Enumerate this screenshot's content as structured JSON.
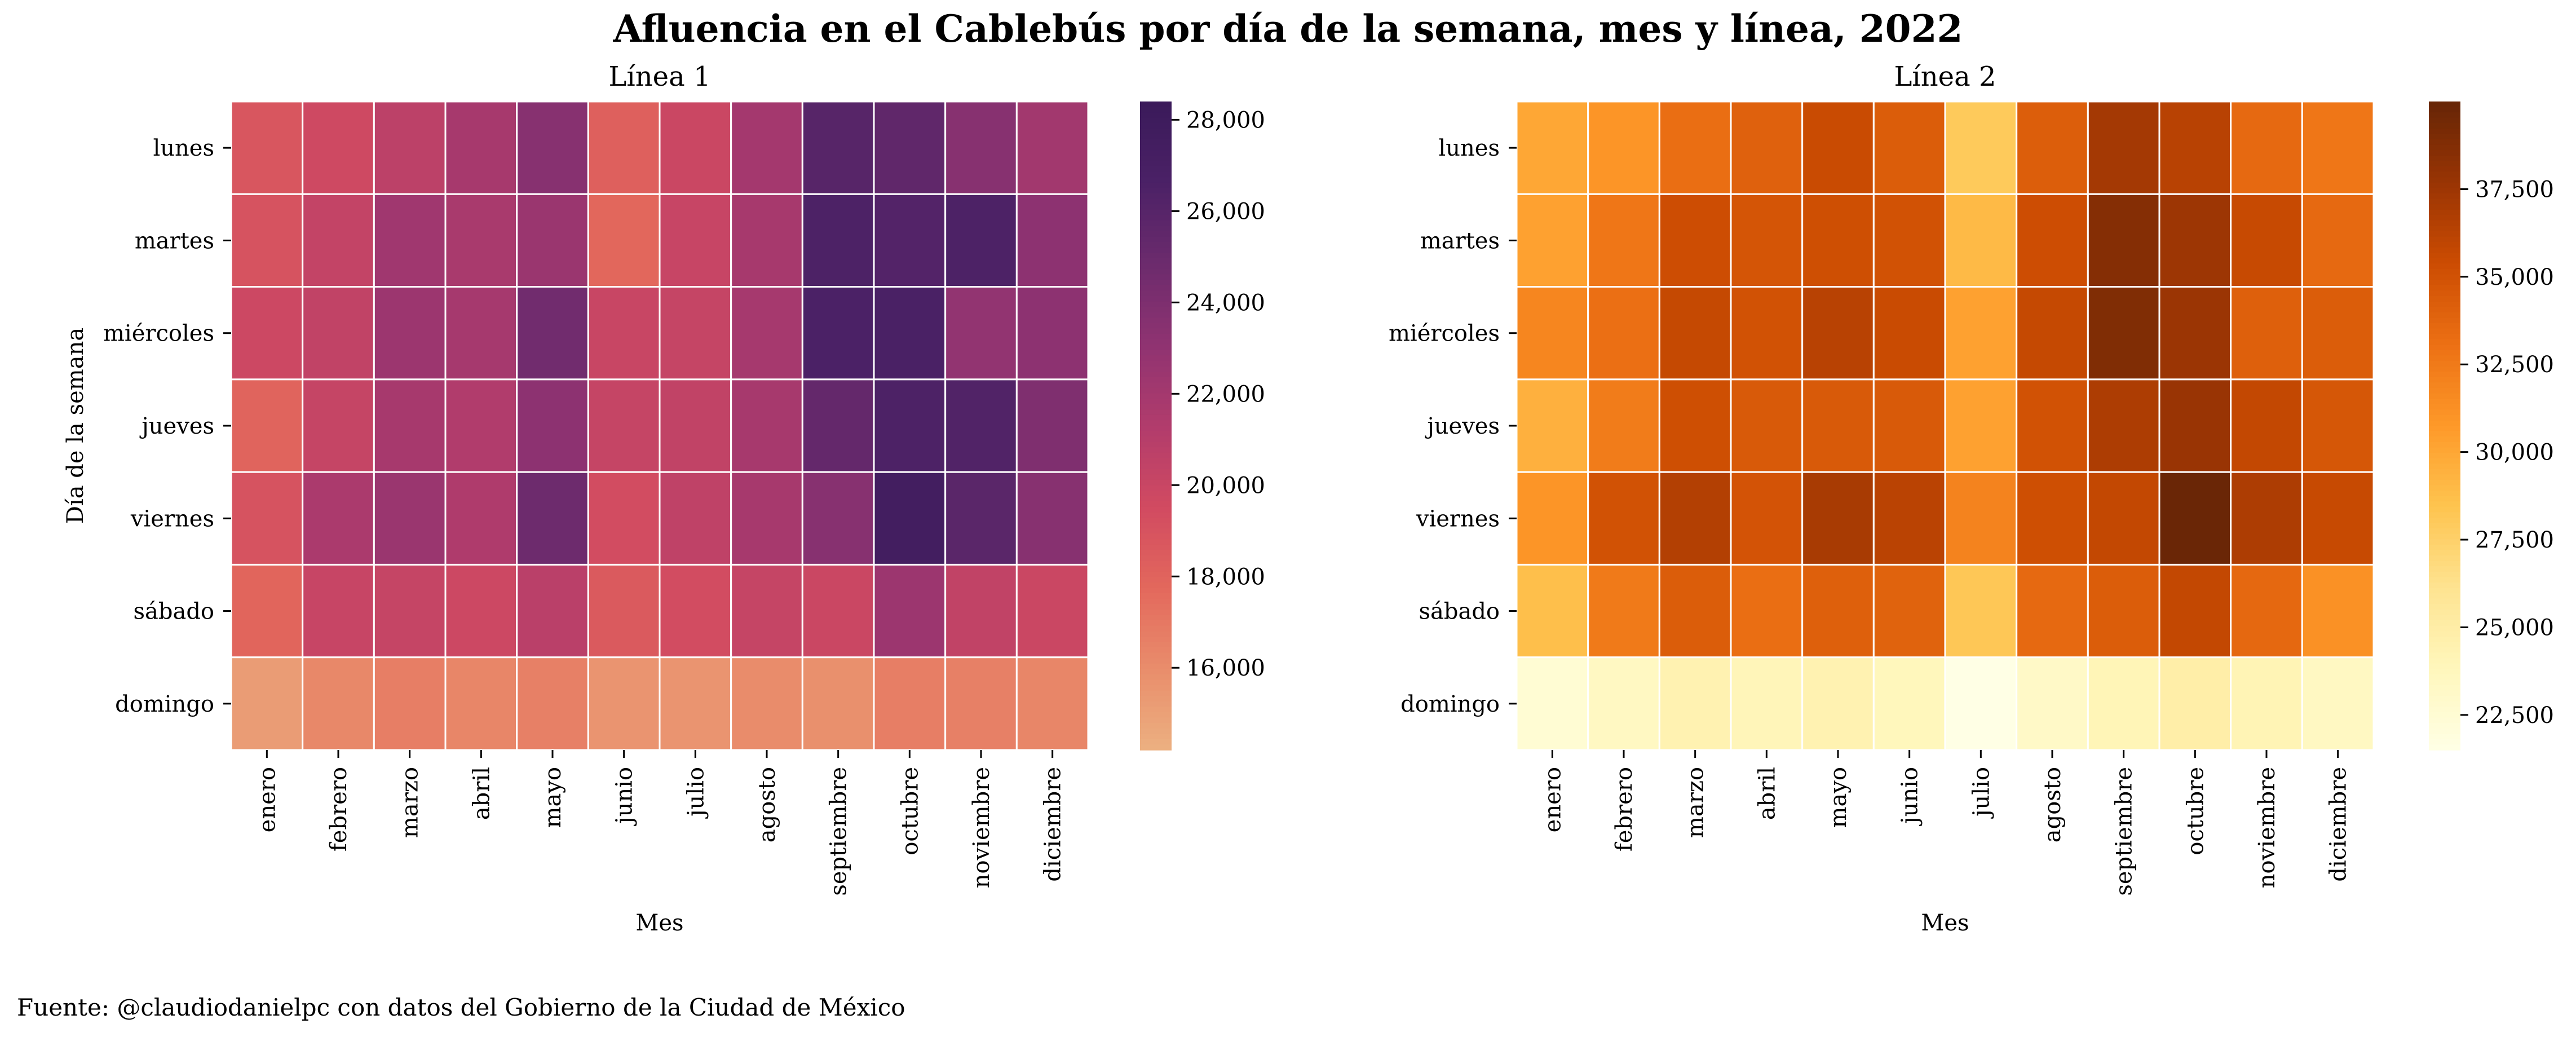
{
  "title": "Afluencia en el Cablebús por día de la semana, mes y línea, 2022",
  "source": "Fuente: @claudiodanielpc con datos del Gobierno de la Ciudad de México",
  "colors": {
    "cell_border": "#ffffff"
  },
  "chart_data": [
    {
      "type": "heatmap",
      "title": "Línea 1",
      "xlabel": "Mes",
      "ylabel": "Día de la semana",
      "colormap": "flare",
      "x_categories": [
        "enero",
        "febrero",
        "marzo",
        "abril",
        "mayo",
        "junio",
        "julio",
        "agosto",
        "septiembre",
        "octubre",
        "noviembre",
        "diciembre"
      ],
      "y_categories": [
        "lunes",
        "martes",
        "miércoles",
        "jueves",
        "viernes",
        "sábado",
        "domingo"
      ],
      "colorbar_range": [
        14200,
        28400
      ],
      "colorbar_ticks": [
        16000,
        18000,
        20000,
        22000,
        24000,
        26000,
        28000
      ],
      "colorbar_tick_labels": [
        "16,000",
        "18,000",
        "20,000",
        "22,000",
        "24,000",
        "26,000",
        "28,000"
      ],
      "values": [
        [
          18800,
          19700,
          20700,
          21800,
          23500,
          18200,
          19900,
          22000,
          26000,
          25500,
          23500,
          22100
        ],
        [
          19000,
          20300,
          22200,
          21700,
          22500,
          17800,
          20100,
          21800,
          26500,
          26200,
          26500,
          23200
        ],
        [
          19800,
          20400,
          22400,
          21900,
          24600,
          20000,
          20200,
          21900,
          26600,
          26700,
          22900,
          23200
        ],
        [
          18000,
          20200,
          21800,
          21300,
          23200,
          20200,
          20400,
          21800,
          25300,
          26500,
          26300,
          23900
        ],
        [
          19000,
          21600,
          22500,
          21400,
          24800,
          19400,
          20500,
          21800,
          23500,
          27500,
          25800,
          23500
        ],
        [
          17900,
          20100,
          20200,
          19800,
          20800,
          18600,
          19400,
          20200,
          19900,
          22400,
          20400,
          19900
        ],
        [
          15200,
          16200,
          16700,
          16300,
          16600,
          15600,
          15600,
          16000,
          15800,
          16700,
          16600,
          16300
        ]
      ]
    },
    {
      "type": "heatmap",
      "title": "Línea 2",
      "xlabel": "Mes",
      "ylabel": "",
      "colormap": "YlOrBr",
      "x_categories": [
        "enero",
        "febrero",
        "marzo",
        "abril",
        "mayo",
        "junio",
        "julio",
        "agosto",
        "septiembre",
        "octubre",
        "noviembre",
        "diciembre"
      ],
      "y_categories": [
        "lunes",
        "martes",
        "miércoles",
        "jueves",
        "viernes",
        "sábado",
        "domingo"
      ],
      "colorbar_range": [
        21500,
        40000
      ],
      "colorbar_ticks": [
        22500,
        25000,
        27500,
        30000,
        32500,
        35000,
        37500
      ],
      "colorbar_tick_labels": [
        "22,500",
        "25,000",
        "27,500",
        "30,000",
        "32,500",
        "35,000",
        "37,500"
      ],
      "values": [
        [
          30000,
          31000,
          33200,
          34000,
          35500,
          34300,
          28000,
          34200,
          37200,
          36300,
          33500,
          32700
        ],
        [
          30300,
          32700,
          35300,
          34800,
          35200,
          35000,
          29000,
          35300,
          38600,
          37500,
          35600,
          33500
        ],
        [
          31800,
          33100,
          35700,
          35000,
          36300,
          35500,
          30300,
          35700,
          38800,
          37600,
          34100,
          34300
        ],
        [
          29500,
          32400,
          35200,
          34500,
          34500,
          34500,
          30300,
          35000,
          36800,
          37700,
          35800,
          34700
        ],
        [
          31000,
          35000,
          36500,
          34900,
          37000,
          36200,
          32000,
          35200,
          35800,
          39800,
          36800,
          35600
        ],
        [
          28700,
          32500,
          34300,
          33200,
          34100,
          33900,
          28200,
          33500,
          34300,
          35800,
          33600,
          31200
        ],
        [
          22500,
          23500,
          24400,
          24000,
          24400,
          23800,
          21500,
          23200,
          24100,
          24900,
          24200,
          23500
        ]
      ]
    }
  ]
}
